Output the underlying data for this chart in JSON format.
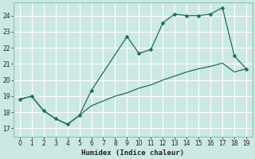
{
  "xlabel": "Humidex (Indice chaleur)",
  "bg_color": "#cce8e4",
  "grid_color": "#b8dcd8",
  "line_color": "#1a6e62",
  "xlim": [
    -0.5,
    19.5
  ],
  "ylim": [
    16.5,
    24.8
  ],
  "xticks": [
    0,
    1,
    2,
    3,
    4,
    5,
    6,
    7,
    8,
    9,
    10,
    11,
    12,
    13,
    14,
    15,
    16,
    17,
    18,
    19
  ],
  "yticks": [
    17,
    18,
    19,
    20,
    21,
    22,
    23,
    24
  ],
  "line1_x": [
    0,
    1,
    2,
    3,
    4,
    5,
    6,
    9,
    10,
    11,
    12,
    13,
    14,
    15,
    16,
    17,
    18,
    19
  ],
  "line1_y": [
    18.8,
    19.0,
    18.1,
    17.6,
    17.25,
    17.8,
    19.35,
    22.7,
    21.65,
    21.9,
    23.55,
    24.1,
    24.0,
    24.0,
    24.1,
    24.5,
    21.5,
    20.7
  ],
  "line2_x": [
    0,
    1,
    2,
    3,
    4,
    5,
    6,
    7,
    8,
    9,
    10,
    11,
    12,
    13,
    14,
    15,
    16,
    17,
    18,
    19
  ],
  "line2_y": [
    18.8,
    19.0,
    18.1,
    17.6,
    17.25,
    17.8,
    18.4,
    18.7,
    19.0,
    19.2,
    19.5,
    19.7,
    20.0,
    20.25,
    20.5,
    20.7,
    20.85,
    21.05,
    20.5,
    20.7
  ],
  "marker_size": 2.5,
  "linewidth": 0.9,
  "xlabel_fontsize": 6.5,
  "tick_fontsize": 5.5
}
